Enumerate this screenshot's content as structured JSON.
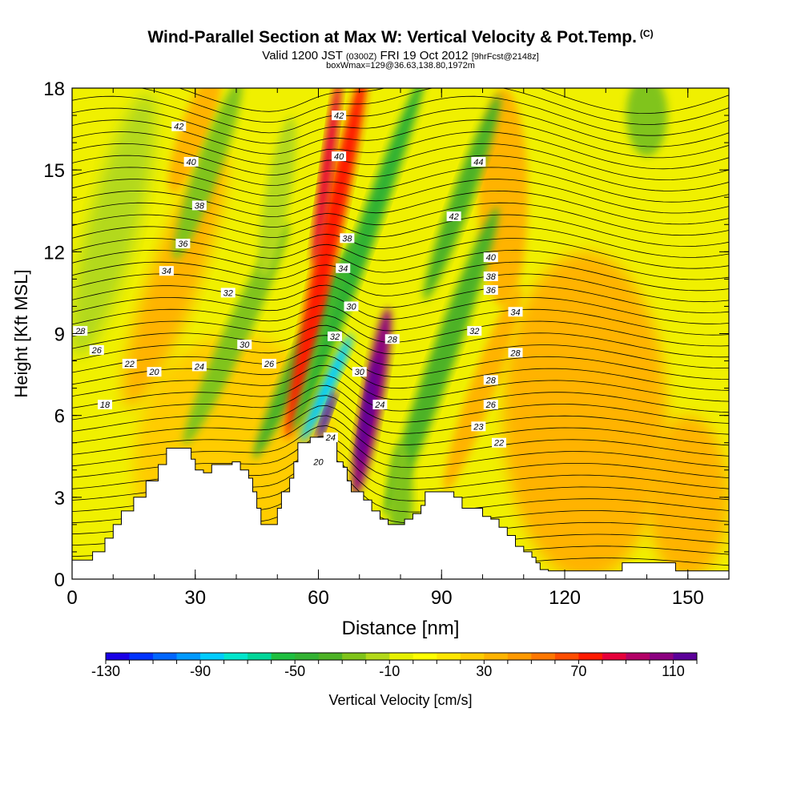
{
  "chart_data": {
    "type": "heatmap",
    "title": "Wind-Parallel Section at Max W: Vertical Velocity & Pot.Temp.",
    "title_mark": "(C)",
    "subtitle_main": "Valid 1200 JST",
    "subtitle_utc": "(0300Z)",
    "subtitle_date": "FRI 19 Oct 2012",
    "subtitle_fcst": "[9hrFcst@2148z]",
    "subtitle2": "boxWmax=129@36.63,138.80,1972m",
    "xlabel": "Distance [nm]",
    "ylabel": "Height [Kft MSL]",
    "xlim": [
      0,
      160
    ],
    "ylim": [
      0,
      18
    ],
    "x_ticks": [
      "0",
      "30",
      "60",
      "90",
      "120",
      "150"
    ],
    "y_ticks": [
      "0",
      "3",
      "6",
      "9",
      "12",
      "15",
      "18"
    ],
    "colorbar": {
      "label": "Vertical Velocity [cm/s]",
      "levels": [
        -130,
        -120,
        -110,
        -100,
        -90,
        -80,
        -70,
        -60,
        -50,
        -40,
        -30,
        -20,
        -10,
        0,
        10,
        20,
        30,
        40,
        50,
        60,
        70,
        80,
        90,
        100,
        110,
        120
      ],
      "tick_labels": [
        "-130",
        "-90",
        "-50",
        "-10",
        "30",
        "70",
        "110"
      ],
      "colors": [
        "#1a00e6",
        "#0033ff",
        "#0066ff",
        "#0099ff",
        "#00ccff",
        "#00e6cc",
        "#00d699",
        "#1fbf40",
        "#33b233",
        "#4db226",
        "#80c41a",
        "#b3d91a",
        "#e6f000",
        "#ffff00",
        "#ffe600",
        "#ffcc00",
        "#ffb300",
        "#ff9900",
        "#ff7700",
        "#ff4d00",
        "#ff1a00",
        "#e6003a",
        "#b30066",
        "#8c0080",
        "#5c0099"
      ]
    },
    "theta_contour_labels": [
      "18",
      "20",
      "20",
      "22",
      "22",
      "23",
      "24",
      "24",
      "24",
      "26",
      "26",
      "26",
      "28",
      "28",
      "28",
      "28",
      "30",
      "30",
      "30",
      "32",
      "32",
      "32",
      "34",
      "34",
      "34",
      "36",
      "36",
      "38",
      "38",
      "38",
      "40",
      "40",
      "40",
      "42",
      "42",
      "42",
      "44"
    ],
    "terrain_kft": [
      [
        0,
        0.7
      ],
      [
        4,
        0.7
      ],
      [
        5,
        1.0
      ],
      [
        8,
        1.5
      ],
      [
        10,
        2.0
      ],
      [
        12,
        2.5
      ],
      [
        15,
        3.0
      ],
      [
        18,
        3.6
      ],
      [
        21,
        4.2
      ],
      [
        23,
        4.8
      ],
      [
        28,
        4.8
      ],
      [
        29,
        4.4
      ],
      [
        30,
        4.0
      ],
      [
        32,
        3.9
      ],
      [
        34,
        4.2
      ],
      [
        39,
        4.3
      ],
      [
        41,
        4.0
      ],
      [
        43,
        3.7
      ],
      [
        44,
        3.2
      ],
      [
        45,
        2.6
      ],
      [
        46,
        2.0
      ],
      [
        49,
        2.0
      ],
      [
        50,
        2.6
      ],
      [
        51,
        3.2
      ],
      [
        53,
        3.7
      ],
      [
        54,
        4.3
      ],
      [
        55,
        5.0
      ],
      [
        58,
        5.2
      ],
      [
        62,
        5.2
      ],
      [
        64,
        5.3
      ],
      [
        64.5,
        4.3
      ],
      [
        66,
        4.1
      ],
      [
        67,
        3.6
      ],
      [
        68,
        3.2
      ],
      [
        71,
        2.9
      ],
      [
        73,
        2.5
      ],
      [
        75,
        2.2
      ],
      [
        77,
        2.0
      ],
      [
        80,
        2.0
      ],
      [
        81,
        2.2
      ],
      [
        83,
        2.4
      ],
      [
        85,
        2.7
      ],
      [
        86,
        3.2
      ],
      [
        92,
        3.2
      ],
      [
        93,
        3.0
      ],
      [
        95,
        2.6
      ],
      [
        98,
        2.6
      ],
      [
        100,
        2.3
      ],
      [
        102,
        2.2
      ],
      [
        104,
        1.9
      ],
      [
        106,
        1.6
      ],
      [
        108,
        1.2
      ],
      [
        110,
        1.0
      ],
      [
        112,
        0.8
      ],
      [
        113,
        0.6
      ],
      [
        114,
        0.35
      ],
      [
        116,
        0.3
      ],
      [
        132,
        0.3
      ],
      [
        134,
        0.6
      ],
      [
        145,
        0.6
      ],
      [
        147,
        0.3
      ],
      [
        160,
        0.3
      ]
    ]
  }
}
